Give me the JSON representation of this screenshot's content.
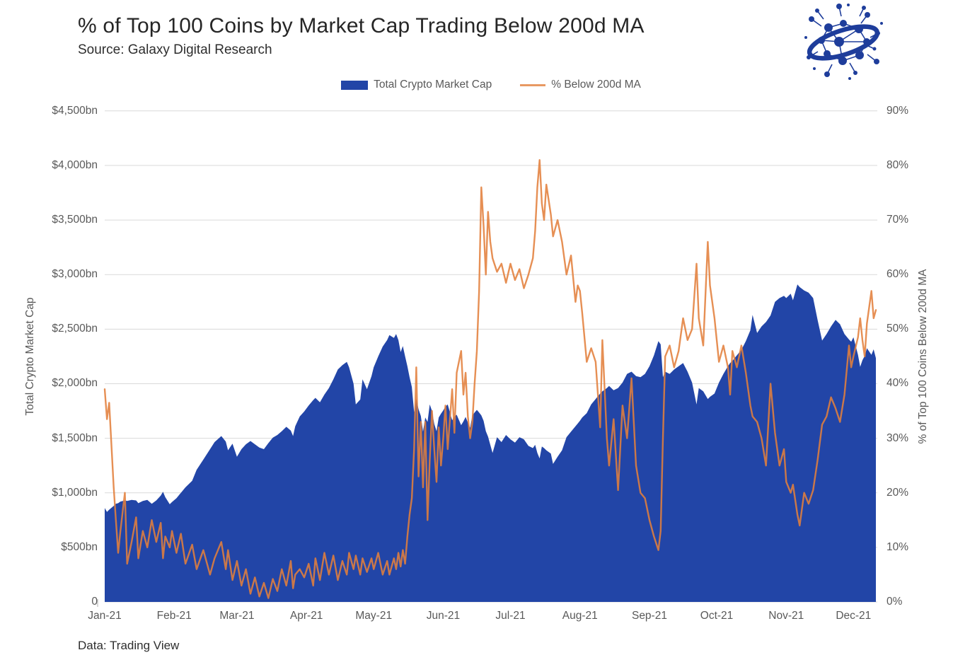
{
  "header": {
    "title": "% of Top 100 Coins by Market Cap Trading Below 200d MA",
    "source": "Source: Galaxy Digital Research"
  },
  "footer": {
    "text": "Data: Trading View"
  },
  "logo": {
    "name": "galaxy-digital-logo",
    "color": "#1E3D9B"
  },
  "legend": {
    "items": [
      {
        "label": "Total Crypto Market Cap",
        "type": "area",
        "color": "#2245A7"
      },
      {
        "label": "% Below 200d MA",
        "type": "line",
        "color": "#E2803C"
      }
    ]
  },
  "colors": {
    "area_fill": "#2245A7",
    "line_stroke": "#E2803C",
    "gridline": "#D9D9D9",
    "axis_text": "#595959",
    "title_text": "#262626"
  },
  "chart_data": {
    "type": "combo: area (left axis) + line (right axis)",
    "title": "% of Top 100 Coins by Market Cap Trading Below 200d MA",
    "grid": "horizontal gridlines only",
    "legend_position": "top center",
    "x": {
      "unit": "day of 2021",
      "min": 1,
      "max": 345,
      "range_note": "Jan 1 2021 through ~Dec 11 2021"
    },
    "x_ticks": [
      {
        "label": "Jan-21",
        "day": 1
      },
      {
        "label": "Feb-21",
        "day": 32
      },
      {
        "label": "Mar-21",
        "day": 60
      },
      {
        "label": "Apr-21",
        "day": 91
      },
      {
        "label": "May-21",
        "day": 121
      },
      {
        "label": "Jun-21",
        "day": 152
      },
      {
        "label": "Jul-21",
        "day": 182
      },
      {
        "label": "Aug-21",
        "day": 213
      },
      {
        "label": "Sep-21",
        "day": 244
      },
      {
        "label": "Oct-21",
        "day": 274
      },
      {
        "label": "Nov-21",
        "day": 305
      },
      {
        "label": "Dec-21",
        "day": 335
      }
    ],
    "left_axis": {
      "title": "Total Crypto Market Cap",
      "min": 0,
      "max": 4500,
      "tick_step": 500,
      "tick_labels": [
        "$4,500bn",
        "$4,000bn",
        "$3,500bn",
        "$3,000bn",
        "$2,500bn",
        "$2,000bn",
        "$1,500bn",
        "$1,000bn",
        "$500bn",
        "0"
      ]
    },
    "right_axis": {
      "title": "% of Top 100 Coins Below 200d MA",
      "min": 0,
      "max": 90,
      "tick_step": 10,
      "tick_labels": [
        "90%",
        "80%",
        "70%",
        "60%",
        "50%",
        "40%",
        "30%",
        "20%",
        "10%",
        "0%"
      ]
    },
    "series": [
      {
        "name": "Total Crypto Market Cap",
        "type": "area",
        "axis": "left",
        "color": "#2245A7",
        "point_index": 1
      },
      {
        "name": "% Below 200d MA",
        "type": "line",
        "axis": "right",
        "color": "#E2803C",
        "point_index": 2
      }
    ],
    "points_format": "[day, market_cap_$bn, pct_below_200dma]",
    "points": [
      [
        1,
        860,
        39
      ],
      [
        2,
        825,
        33.5
      ],
      [
        3,
        845,
        36.5
      ],
      [
        5,
        880,
        21
      ],
      [
        6,
        900,
        15
      ],
      [
        7,
        905,
        9
      ],
      [
        8,
        920,
        13
      ],
      [
        10,
        930,
        20
      ],
      [
        11,
        925,
        7
      ],
      [
        13,
        935,
        11
      ],
      [
        15,
        930,
        15.5
      ],
      [
        16,
        905,
        8
      ],
      [
        18,
        925,
        13
      ],
      [
        20,
        935,
        10
      ],
      [
        22,
        900,
        15
      ],
      [
        24,
        930,
        11
      ],
      [
        26,
        975,
        14.5
      ],
      [
        27,
        1010,
        8
      ],
      [
        28,
        960,
        12
      ],
      [
        30,
        895,
        10
      ],
      [
        31,
        915,
        13
      ],
      [
        33,
        950,
        9
      ],
      [
        35,
        1000,
        12.5
      ],
      [
        37,
        1050,
        7
      ],
      [
        40,
        1110,
        10.5
      ],
      [
        42,
        1210,
        6
      ],
      [
        45,
        1305,
        9.5
      ],
      [
        48,
        1400,
        5
      ],
      [
        50,
        1465,
        8
      ],
      [
        53,
        1520,
        11
      ],
      [
        55,
        1470,
        6
      ],
      [
        56,
        1390,
        9.5
      ],
      [
        58,
        1450,
        4
      ],
      [
        60,
        1330,
        7.5
      ],
      [
        62,
        1400,
        3
      ],
      [
        64,
        1445,
        6
      ],
      [
        66,
        1475,
        1.5
      ],
      [
        68,
        1445,
        4.5
      ],
      [
        70,
        1415,
        1
      ],
      [
        72,
        1400,
        3.5
      ],
      [
        74,
        1455,
        0.7
      ],
      [
        76,
        1505,
        4.2
      ],
      [
        78,
        1530,
        2
      ],
      [
        80,
        1565,
        6
      ],
      [
        82,
        1605,
        3
      ],
      [
        84,
        1570,
        7.5
      ],
      [
        85,
        1520,
        2.5
      ],
      [
        86,
        1610,
        5
      ],
      [
        88,
        1700,
        6
      ],
      [
        90,
        1745,
        4.5
      ],
      [
        92,
        1800,
        7
      ],
      [
        94,
        1850,
        3
      ],
      [
        95,
        1870,
        8
      ],
      [
        97,
        1830,
        4
      ],
      [
        99,
        1900,
        9
      ],
      [
        101,
        1960,
        5
      ],
      [
        103,
        2040,
        8.5
      ],
      [
        105,
        2130,
        4
      ],
      [
        107,
        2170,
        7.5
      ],
      [
        109,
        2200,
        5
      ],
      [
        110,
        2150,
        9
      ],
      [
        112,
        2000,
        6
      ],
      [
        113,
        1810,
        8.5
      ],
      [
        115,
        1855,
        5
      ],
      [
        116,
        2040,
        8
      ],
      [
        118,
        1950,
        5.5
      ],
      [
        120,
        2070,
        8
      ],
      [
        121,
        2150,
        6
      ],
      [
        123,
        2250,
        9
      ],
      [
        125,
        2340,
        5
      ],
      [
        127,
        2400,
        7.5
      ],
      [
        128,
        2445,
        5
      ],
      [
        130,
        2420,
        8
      ],
      [
        131,
        2455,
        6
      ],
      [
        132,
        2400,
        9
      ],
      [
        133,
        2290,
        6.5
      ],
      [
        134,
        2345,
        9.5
      ],
      [
        135,
        2250,
        7
      ],
      [
        136,
        2160,
        12
      ],
      [
        137,
        2060,
        16
      ],
      [
        138,
        1970,
        19
      ],
      [
        139,
        1740,
        28
      ],
      [
        140,
        1865,
        43
      ],
      [
        141,
        1765,
        23
      ],
      [
        142,
        1705,
        33
      ],
      [
        143,
        1560,
        21
      ],
      [
        144,
        1690,
        33
      ],
      [
        145,
        1650,
        15
      ],
      [
        146,
        1810,
        26
      ],
      [
        147,
        1750,
        35
      ],
      [
        148,
        1630,
        28
      ],
      [
        149,
        1565,
        22
      ],
      [
        150,
        1690,
        32
      ],
      [
        151,
        1725,
        25
      ],
      [
        152,
        1755,
        30
      ],
      [
        153,
        1790,
        36
      ],
      [
        154,
        1810,
        28
      ],
      [
        156,
        1665,
        39
      ],
      [
        157,
        1700,
        31
      ],
      [
        158,
        1715,
        42
      ],
      [
        160,
        1620,
        46
      ],
      [
        161,
        1655,
        38
      ],
      [
        162,
        1695,
        42
      ],
      [
        163,
        1645,
        34
      ],
      [
        164,
        1595,
        30
      ],
      [
        165,
        1710,
        33
      ],
      [
        166,
        1735,
        40
      ],
      [
        167,
        1760,
        46
      ],
      [
        168,
        1735,
        57
      ],
      [
        169,
        1710,
        76
      ],
      [
        170,
        1660,
        69
      ],
      [
        171,
        1565,
        60
      ],
      [
        172,
        1515,
        71.5
      ],
      [
        173,
        1440,
        66
      ],
      [
        174,
        1365,
        63
      ],
      [
        176,
        1510,
        60.5
      ],
      [
        178,
        1465,
        62
      ],
      [
        180,
        1530,
        58.5
      ],
      [
        182,
        1490,
        62
      ],
      [
        184,
        1460,
        59
      ],
      [
        186,
        1510,
        61
      ],
      [
        188,
        1490,
        57.5
      ],
      [
        190,
        1430,
        60
      ],
      [
        192,
        1410,
        63
      ],
      [
        193,
        1440,
        68
      ],
      [
        194,
        1365,
        76
      ],
      [
        195,
        1315,
        81
      ],
      [
        196,
        1425,
        73
      ],
      [
        197,
        1410,
        70
      ],
      [
        198,
        1390,
        76.5
      ],
      [
        200,
        1360,
        71
      ],
      [
        201,
        1265,
        67
      ],
      [
        203,
        1330,
        70
      ],
      [
        205,
        1390,
        66
      ],
      [
        207,
        1510,
        60
      ],
      [
        209,
        1560,
        63.5
      ],
      [
        211,
        1610,
        55
      ],
      [
        212,
        1635,
        58
      ],
      [
        213,
        1660,
        57
      ],
      [
        214,
        1690,
        53
      ],
      [
        216,
        1730,
        44
      ],
      [
        218,
        1810,
        46.5
      ],
      [
        220,
        1860,
        44
      ],
      [
        222,
        1910,
        32
      ],
      [
        223,
        1930,
        48
      ],
      [
        225,
        1960,
        30
      ],
      [
        226,
        1980,
        25
      ],
      [
        228,
        1940,
        33.5
      ],
      [
        230,
        1960,
        20.5
      ],
      [
        232,
        2010,
        36
      ],
      [
        234,
        2090,
        30
      ],
      [
        236,
        2110,
        41
      ],
      [
        238,
        2070,
        25
      ],
      [
        240,
        2060,
        20
      ],
      [
        242,
        2090,
        19
      ],
      [
        244,
        2160,
        15
      ],
      [
        246,
        2260,
        12
      ],
      [
        248,
        2390,
        9.5
      ],
      [
        249,
        2360,
        13
      ],
      [
        250,
        2060,
        30
      ],
      [
        251,
        2110,
        45
      ],
      [
        253,
        2090,
        47
      ],
      [
        255,
        2130,
        43
      ],
      [
        257,
        2160,
        46
      ],
      [
        259,
        2190,
        52
      ],
      [
        261,
        2110,
        48
      ],
      [
        263,
        2010,
        50
      ],
      [
        265,
        1810,
        62
      ],
      [
        266,
        1960,
        52
      ],
      [
        268,
        1930,
        47
      ],
      [
        270,
        1860,
        66
      ],
      [
        271,
        1880,
        58
      ],
      [
        273,
        1910,
        52
      ],
      [
        275,
        2010,
        44
      ],
      [
        277,
        2090,
        47
      ],
      [
        279,
        2160,
        43
      ],
      [
        280,
        2190,
        38
      ],
      [
        281,
        2210,
        46
      ],
      [
        283,
        2260,
        43
      ],
      [
        285,
        2310,
        47
      ],
      [
        287,
        2390,
        42
      ],
      [
        289,
        2490,
        36
      ],
      [
        290,
        2630,
        34
      ],
      [
        292,
        2465,
        33
      ],
      [
        294,
        2525,
        30
      ],
      [
        296,
        2565,
        25
      ],
      [
        298,
        2625,
        40
      ],
      [
        300,
        2750,
        31
      ],
      [
        302,
        2785,
        25
      ],
      [
        304,
        2805,
        28
      ],
      [
        305,
        2785,
        22
      ],
      [
        307,
        2825,
        20
      ],
      [
        308,
        2765,
        21.5
      ],
      [
        310,
        2910,
        16
      ],
      [
        311,
        2885,
        14
      ],
      [
        313,
        2855,
        20
      ],
      [
        315,
        2835,
        18
      ],
      [
        317,
        2785,
        20.5
      ],
      [
        319,
        2585,
        26
      ],
      [
        321,
        2395,
        32.5
      ],
      [
        323,
        2455,
        34
      ],
      [
        325,
        2525,
        37.5
      ],
      [
        327,
        2585,
        35.5
      ],
      [
        329,
        2545,
        33
      ],
      [
        331,
        2455,
        38
      ],
      [
        333,
        2405,
        47
      ],
      [
        334,
        2385,
        43
      ],
      [
        335,
        2425,
        45
      ],
      [
        337,
        2265,
        48.5
      ],
      [
        338,
        2155,
        52
      ],
      [
        339,
        2215,
        48
      ],
      [
        340,
        2255,
        45
      ],
      [
        341,
        2325,
        51
      ],
      [
        343,
        2265,
        57
      ],
      [
        344,
        2315,
        52
      ],
      [
        345,
        2235,
        53.5
      ]
    ]
  }
}
